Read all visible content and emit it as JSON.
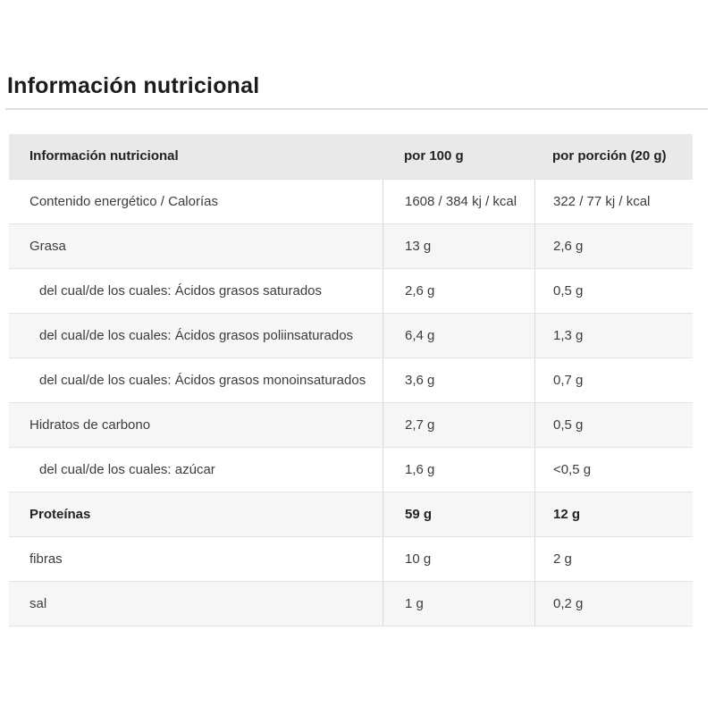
{
  "page": {
    "title": "Información nutricional"
  },
  "table": {
    "header": {
      "label": "Información nutricional",
      "per_100g": "por 100 g",
      "per_portion": "por porción (20 g)"
    },
    "rows": [
      {
        "label": "Contenido energético / Calorías",
        "per_100g": "1608 / 384 kj / kcal",
        "per_portion": "322 / 77 kj / kcal"
      },
      {
        "label": "Grasa",
        "per_100g": "13 g",
        "per_portion": "2,6 g"
      },
      {
        "label": "del cual/de los cuales: Ácidos grasos saturados",
        "per_100g": "2,6 g",
        "per_portion": "0,5 g"
      },
      {
        "label": "del cual/de los cuales: Ácidos grasos poliinsaturados",
        "per_100g": "6,4 g",
        "per_portion": "1,3 g"
      },
      {
        "label": "del cual/de los cuales: Ácidos grasos monoinsaturados",
        "per_100g": "3,6 g",
        "per_portion": "0,7 g"
      },
      {
        "label": "Hidratos de carbono",
        "per_100g": "2,7 g",
        "per_portion": "0,5 g"
      },
      {
        "label": "del cual/de los cuales: azúcar",
        "per_100g": "1,6 g",
        "per_portion": "<0,5 g"
      },
      {
        "label": "Proteínas",
        "per_100g": "59 g",
        "per_portion": "12 g"
      },
      {
        "label": "fibras",
        "per_100g": "10 g",
        "per_portion": "2 g"
      },
      {
        "label": "sal",
        "per_100g": "1 g",
        "per_portion": "0,2 g"
      }
    ],
    "colors": {
      "header_bg": "#e9e9e9",
      "stripe_bg": "#f6f6f6",
      "row_border": "#e3e3e3",
      "column_border": "#d9d9d9",
      "text": "#3c3c3c",
      "title_text": "#1c1c1c"
    }
  }
}
